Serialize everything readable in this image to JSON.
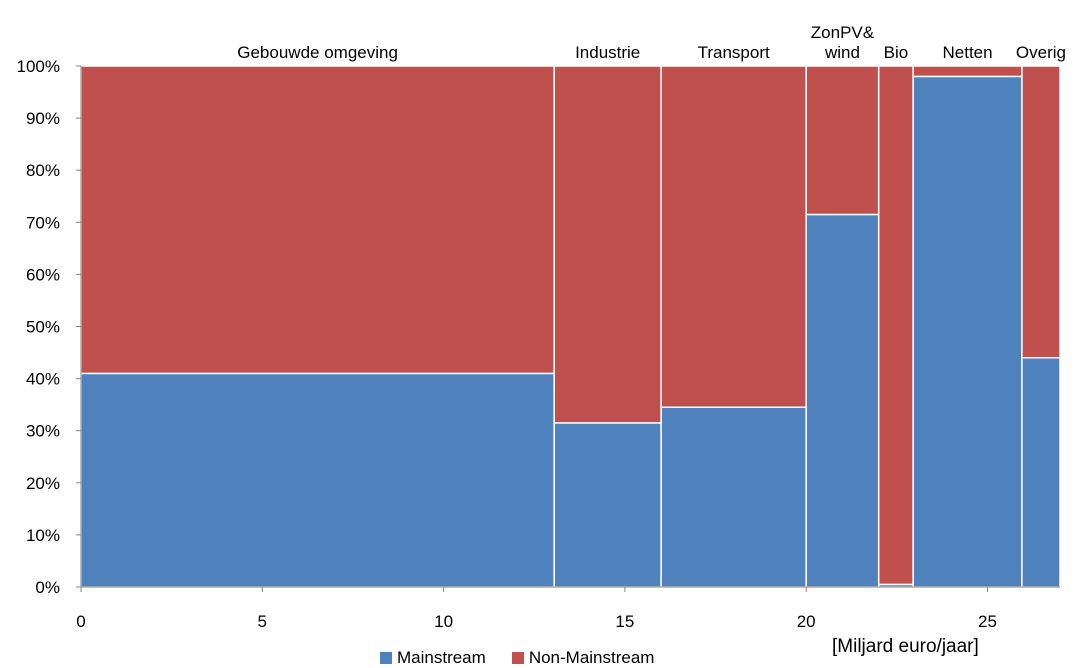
{
  "chart_data": {
    "type": "bar",
    "subtype": "mekko",
    "categories": [
      {
        "name": "Gebouwde omgeving",
        "label_lines": [
          "Gebouwde omgeving"
        ],
        "x_start": 0,
        "width": 13.05,
        "mainstream": 41
      },
      {
        "name": "Industrie",
        "label_lines": [
          "Industrie"
        ],
        "x_start": 13.05,
        "width": 2.95,
        "mainstream": 31.5
      },
      {
        "name": "Transport",
        "label_lines": [
          "Transport"
        ],
        "x_start": 16.0,
        "width": 4.0,
        "mainstream": 34.5
      },
      {
        "name": "ZonPV& wind",
        "label_lines": [
          "ZonPV&",
          "wind"
        ],
        "x_start": 20.0,
        "width": 2.0,
        "mainstream": 71.5
      },
      {
        "name": "Bio",
        "label_lines": [
          "Bio"
        ],
        "x_start": 22.0,
        "width": 0.95,
        "mainstream": 0.5
      },
      {
        "name": "Netten",
        "label_lines": [
          "Netten"
        ],
        "x_start": 22.95,
        "width": 3.0,
        "mainstream": 98
      },
      {
        "name": "Overig",
        "label_lines": [
          "Overig"
        ],
        "x_start": 25.95,
        "width": 1.05,
        "mainstream": 44
      }
    ],
    "series": [
      {
        "name": "Mainstream",
        "color": "#4F81BD"
      },
      {
        "name": "Non-Mainstream",
        "color": "#C0504D"
      }
    ],
    "xlim": [
      0,
      27
    ],
    "xticks": [
      0,
      5,
      10,
      15,
      20,
      25
    ],
    "ylim": [
      0,
      100
    ],
    "yticks": [
      "0%",
      "10%",
      "20%",
      "30%",
      "40%",
      "50%",
      "60%",
      "70%",
      "80%",
      "90%",
      "100%"
    ],
    "xlabel": "[Miljard euro/jaar]",
    "ylabel": "",
    "title": "",
    "grid": false,
    "legend_position": "bottom"
  }
}
